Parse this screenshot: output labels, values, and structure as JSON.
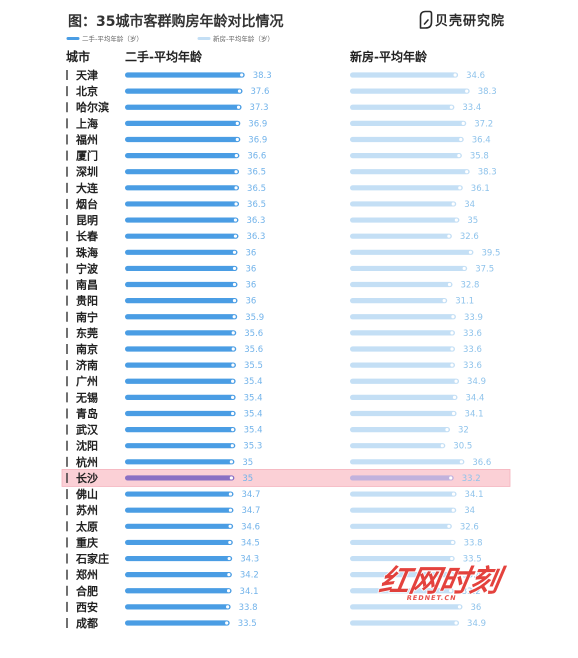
{
  "brand": {
    "logo_icon": "beike-shell-icon",
    "logo_text": "贝壳研究院"
  },
  "columns": {
    "city": "城市",
    "secondhand": "二手-平均年龄",
    "newhouse": "新房-平均年龄"
  },
  "watermark": {
    "text": "红网时刻",
    "subtext": "REDNET.CN",
    "color": "#e3342f"
  },
  "chart_data": {
    "type": "bar",
    "orientation": "horizontal",
    "title": "图：35城市客群购房年龄对比情况",
    "xlim": [
      0,
      40
    ],
    "grid": false,
    "legend_placement": "top-left",
    "categories": [
      "天津",
      "北京",
      "哈尔滨",
      "上海",
      "福州",
      "厦门",
      "深圳",
      "大连",
      "烟台",
      "昆明",
      "长春",
      "珠海",
      "宁波",
      "南昌",
      "贵阳",
      "南宁",
      "东莞",
      "南京",
      "济南",
      "广州",
      "无锡",
      "青岛",
      "武汉",
      "沈阳",
      "杭州",
      "长沙",
      "佛山",
      "苏州",
      "太原",
      "重庆",
      "石家庄",
      "郑州",
      "合肥",
      "西安",
      "成都"
    ],
    "series": [
      {
        "name": "二手-平均年龄（岁）",
        "color": "#4a9de4",
        "label_color": "#72b3ea",
        "highlight_color": "#8a70c4",
        "values": [
          38.3,
          37.6,
          37.3,
          36.9,
          36.9,
          36.6,
          36.5,
          36.5,
          36.5,
          36.3,
          36.3,
          36,
          36,
          36,
          36,
          35.9,
          35.6,
          35.6,
          35.5,
          35.4,
          35.4,
          35.4,
          35.4,
          35.3,
          35,
          35,
          34.7,
          34.7,
          34.6,
          34.5,
          34.3,
          34.2,
          34.1,
          33.8,
          33.5
        ]
      },
      {
        "name": "新房-平均年龄（岁）",
        "color": "#c4dff5",
        "label_color": "#8fc3eb",
        "highlight_color": "#c1b2dd",
        "values": [
          34.6,
          38.3,
          33.4,
          37.2,
          36.4,
          35.8,
          38.3,
          36.1,
          34,
          35,
          32.6,
          39.5,
          37.5,
          32.8,
          31.1,
          33.9,
          33.6,
          33.6,
          33.6,
          34.9,
          34.4,
          34.1,
          32,
          30.5,
          36.6,
          33.2,
          34.1,
          34,
          32.6,
          33.8,
          33.5,
          33.4,
          33.2,
          36,
          34.9
        ]
      }
    ],
    "highlight": {
      "index": 25,
      "band_color": "#fbd0d6",
      "border_color": "#f4b2bc"
    }
  }
}
